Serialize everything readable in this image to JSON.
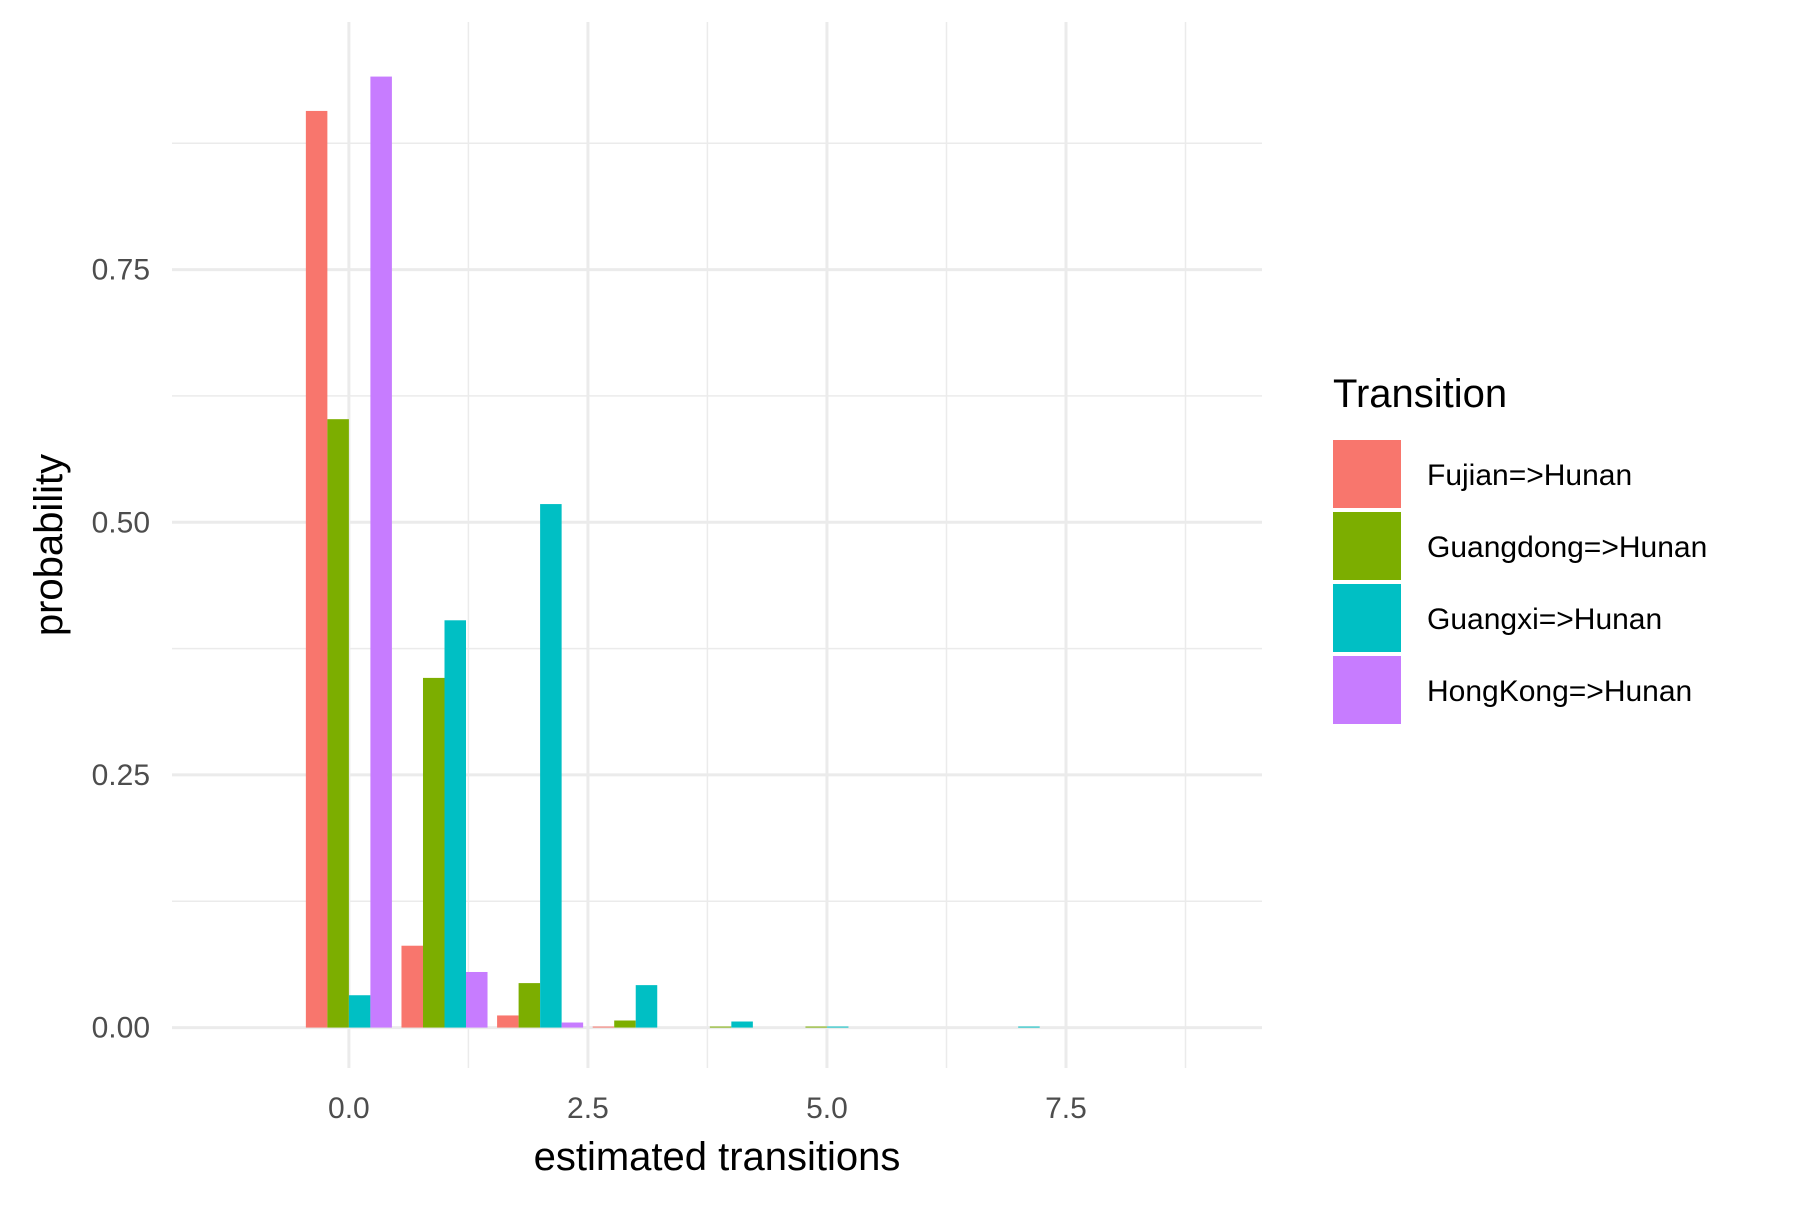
{
  "chart_data": {
    "type": "bar",
    "xlabel": "estimated transitions",
    "ylabel": "probability",
    "xlim": [
      -1.85,
      9.55
    ],
    "ylim": [
      -0.04,
      0.995
    ],
    "x_ticks": [
      "0.0",
      "2.5",
      "5.0",
      "7.5"
    ],
    "x_tick_values": [
      0,
      2.5,
      5,
      7.5
    ],
    "y_ticks": [
      "0.00",
      "0.25",
      "0.50",
      "0.75"
    ],
    "y_tick_values": [
      0,
      0.25,
      0.5,
      0.75
    ],
    "x_minor_values": [
      1.25,
      3.75,
      6.25,
      8.75
    ],
    "y_minor_values": [
      0.125,
      0.375,
      0.625,
      0.875
    ],
    "grid": true,
    "bar_group_width": 0.9,
    "legend": {
      "title": "Transition",
      "position": "right"
    },
    "categories": [
      0,
      1,
      2,
      3,
      4,
      5,
      6,
      7,
      8,
      9
    ],
    "series": [
      {
        "name": "Fujian=>Hunan",
        "color": "#F8766D",
        "values": [
          0.907,
          0.081,
          0.012,
          0.001,
          0,
          0,
          0,
          0,
          0,
          0
        ]
      },
      {
        "name": "Guangdong=>Hunan",
        "color": "#7CAE00",
        "values": [
          0.602,
          0.346,
          0.044,
          0.007,
          0.001,
          0.001,
          0,
          0,
          0,
          0
        ]
      },
      {
        "name": "Guangxi=>Hunan",
        "color": "#00BFC4",
        "values": [
          0.032,
          0.403,
          0.518,
          0.042,
          0.006,
          0.001,
          0,
          0.001,
          0,
          0
        ]
      },
      {
        "name": "HongKong=>Hunan",
        "color": "#C77CFF",
        "values": [
          0.941,
          0.055,
          0.005,
          0,
          0,
          0,
          0,
          0,
          0,
          0
        ]
      }
    ]
  }
}
